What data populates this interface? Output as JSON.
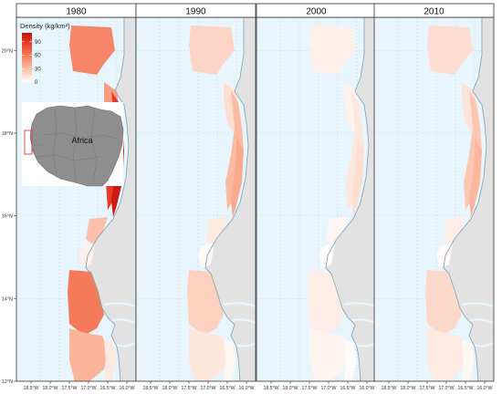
{
  "figure": {
    "panels": [
      {
        "title": "1980",
        "intensity": 1.0
      },
      {
        "title": "1990",
        "intensity": 0.38
      },
      {
        "title": "2000",
        "intensity": 0.16
      },
      {
        "title": "2010",
        "intensity": 0.32
      }
    ],
    "y_axis": {
      "ticks": [
        "20°N",
        "18°N",
        "16°N",
        "14°N",
        "12°N"
      ],
      "values": [
        20,
        18,
        16,
        14,
        12
      ],
      "range": [
        12,
        20.8
      ]
    },
    "x_axis": {
      "ticks": [
        "18.5°W",
        "18.0°W",
        "17.5°W",
        "17.0°W",
        "16.5°W",
        "16.0°W"
      ],
      "values": [
        -18.5,
        -18.0,
        -17.5,
        -17.0,
        -16.5,
        -16.0
      ]
    },
    "legend": {
      "title": "Density (kg/km²)",
      "labels": [
        "90",
        "60",
        "30",
        "0"
      ],
      "values": [
        90,
        60,
        30,
        0
      ],
      "range": [
        0,
        110
      ],
      "colors": [
        "#c4100e",
        "#e63b26",
        "#f57a5a",
        "#fbb49a",
        "#fde3d8",
        "#ffffff"
      ]
    },
    "inset": {
      "label": "Africa",
      "land_color": "#8e8e8e",
      "box_color": "#e04040"
    },
    "colors": {
      "ocean": "#e8f5fc",
      "land": "#e2e2e2",
      "coast": "#8aa8b8",
      "grid": "#c5dbe6",
      "strip_bg": "#ffffff",
      "border": "#333333"
    }
  }
}
